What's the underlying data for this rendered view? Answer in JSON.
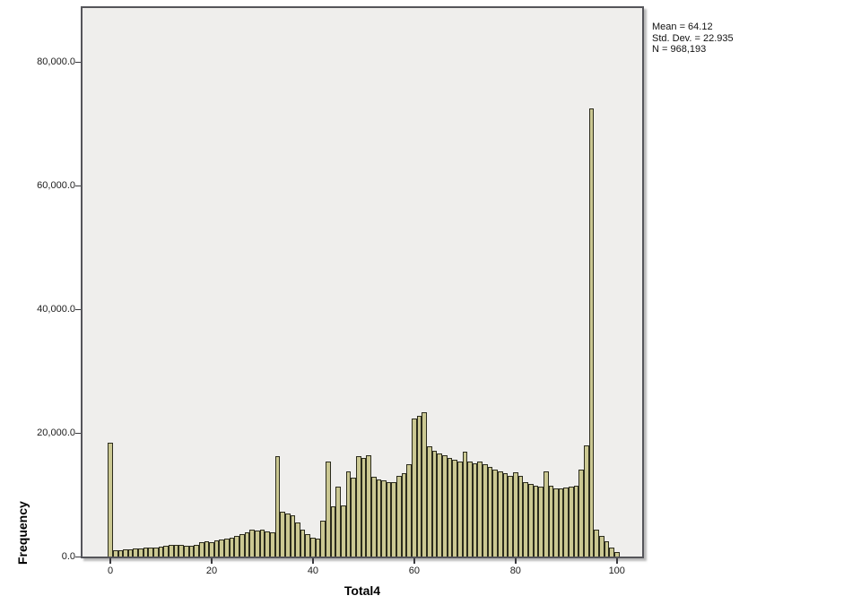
{
  "chart_data": {
    "type": "bar",
    "subtype": "histogram",
    "title": "",
    "xlabel": "Total4",
    "ylabel": "Frequency",
    "x": [
      0,
      1,
      2,
      3,
      4,
      5,
      6,
      7,
      8,
      9,
      10,
      11,
      12,
      13,
      14,
      15,
      16,
      17,
      18,
      19,
      20,
      21,
      22,
      23,
      24,
      25,
      26,
      27,
      28,
      29,
      30,
      31,
      32,
      33,
      34,
      35,
      36,
      37,
      38,
      39,
      40,
      41,
      42,
      43,
      44,
      45,
      46,
      47,
      48,
      49,
      50,
      51,
      52,
      53,
      54,
      55,
      56,
      57,
      58,
      59,
      60,
      61,
      62,
      63,
      64,
      65,
      66,
      67,
      68,
      69,
      70,
      71,
      72,
      73,
      74,
      75,
      76,
      77,
      78,
      79,
      80,
      81,
      82,
      83,
      84,
      85,
      86,
      87,
      88,
      89,
      90,
      91,
      92,
      93,
      94,
      95,
      96,
      97,
      98,
      99,
      100
    ],
    "values": [
      18450,
      950,
      1000,
      1100,
      1150,
      1250,
      1300,
      1400,
      1450,
      1500,
      1600,
      1700,
      1850,
      1900,
      1850,
      1800,
      1800,
      1900,
      2300,
      2450,
      2300,
      2600,
      2750,
      2900,
      3050,
      3300,
      3600,
      3900,
      4300,
      4200,
      4300,
      4000,
      3900,
      16300,
      7300,
      7000,
      6700,
      5500,
      4300,
      3600,
      3050,
      2900,
      5800,
      15300,
      8100,
      11250,
      8200,
      13700,
      12700,
      16300,
      16000,
      16450,
      12850,
      12400,
      12250,
      12000,
      12100,
      13000,
      13500,
      15000,
      22300,
      22800,
      23400,
      17800,
      17100,
      16700,
      16400,
      16000,
      15700,
      15300,
      16900,
      15300,
      15100,
      15400,
      15000,
      14500,
      14100,
      13800,
      13500,
      13100,
      13600,
      13000,
      12100,
      11700,
      11400,
      11300,
      13700,
      11500,
      11000,
      11000,
      11100,
      11300,
      11500,
      14100,
      17900,
      72400,
      4400,
      3300,
      2400,
      1500,
      700
    ],
    "bin_width": 1,
    "xlim": [
      -5.5,
      105
    ],
    "ylim": [
      0,
      88700
    ],
    "xticks": [
      0,
      20,
      40,
      60,
      80,
      100
    ],
    "xtick_labels": [
      "0",
      "20",
      "40",
      "60",
      "80",
      "100"
    ],
    "yticks": [
      0,
      20000,
      40000,
      60000,
      80000
    ],
    "ytick_labels": [
      "0.0",
      "20,000.0",
      "40,000.0",
      "60,000.0",
      "80,000.0"
    ],
    "grid": false,
    "legend": "none",
    "bar_color": "#cbc892",
    "bar_border_color": "#2b2b1c",
    "plot_bg_color": "#efeeec",
    "annotations": [
      "Mean = 64.12",
      "Std. Dev. = 22.935",
      "N = 968,193"
    ]
  },
  "stats": {
    "mean_line": "Mean = 64.12",
    "std_line": "Std. Dev. = 22.935",
    "n_line": "N = 968,193"
  }
}
